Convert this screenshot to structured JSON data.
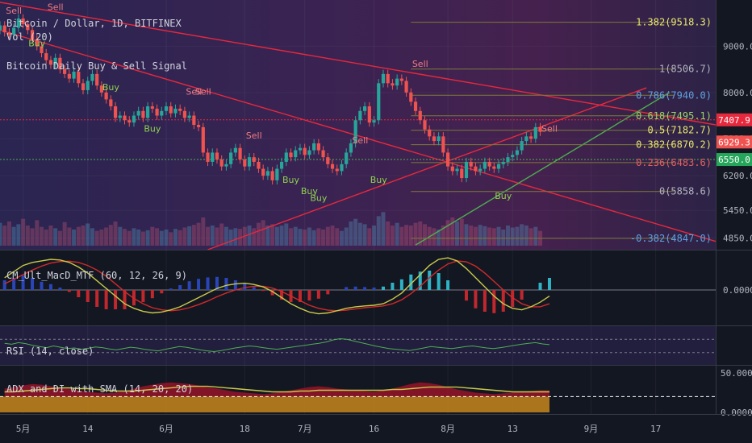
{
  "legend": {
    "symbol": "Bitcoin / Dollar, 1D, BITFINEX",
    "volume": "Vol (20)",
    "indicator": "Bitcoin Daily Buy & Sell Signal",
    "macd": "CM_Ult_MacD_MTF (60, 12, 26, 9)",
    "rsi": "RSI (14, close)",
    "adx": "ADX and DI with SMA (14, 20, 20)"
  },
  "colors": {
    "background": "#131722",
    "up_candle": "#26a69a",
    "down_candle": "#ef5350",
    "trendline": "#e8283c",
    "fib_line": "#7d7a3a",
    "buy_text": "#8fd14f",
    "sell_text": "#f07c82",
    "macd_fast": "#c9c94a",
    "macd_slow": "#d02a2a"
  },
  "chart_data": [
    {
      "type": "candlestick",
      "name": "price",
      "price_axis": {
        "ylim": [
          4600,
          10000
        ],
        "ticks": [
          "9000.0",
          "8000.0",
          "7000.0",
          "6200.0",
          "5450.0",
          "4850.0"
        ],
        "tick_values": [
          9000,
          8000,
          7000,
          6200,
          5450,
          4850
        ]
      },
      "time_axis": {
        "ticks": [
          "5月",
          "14",
          "6月",
          "18",
          "7月",
          "16",
          "8月",
          "13",
          "9月",
          "17"
        ],
        "tick_day": [
          0,
          14,
          31,
          48,
          61,
          76,
          92,
          106,
          123,
          137
        ],
        "day_range": [
          -5,
          150
        ]
      },
      "closes": [
        9450,
        9300,
        9250,
        9400,
        9600,
        9480,
        9350,
        9150,
        9000,
        8850,
        8700,
        8600,
        8750,
        8500,
        8400,
        8300,
        8450,
        8200,
        8050,
        8250,
        8400,
        8150,
        8000,
        7850,
        7700,
        7450,
        7500,
        7400,
        7350,
        7500,
        7600,
        7450,
        7700,
        7650,
        7500,
        7600,
        7700,
        7550,
        7650,
        7600,
        7450,
        7500,
        7300,
        7250,
        6700,
        6500,
        6700,
        6550,
        6400,
        6450,
        6700,
        6800,
        6550,
        6400,
        6600,
        6500,
        6350,
        6200,
        6300,
        6100,
        6350,
        6500,
        6700,
        6600,
        6750,
        6800,
        6650,
        6750,
        6900,
        6750,
        6600,
        6450,
        6350,
        6300,
        6450,
        6700,
        6900,
        7400,
        7600,
        7700,
        7350,
        7400,
        8200,
        8400,
        8200,
        8150,
        8300,
        8250,
        8000,
        7800,
        7600,
        7400,
        7200,
        7050,
        6950,
        7050,
        6700,
        6400,
        6300,
        6350,
        6150,
        6500,
        6400,
        6300,
        6350,
        6500,
        6400,
        6350,
        6450,
        6500,
        6600,
        6650,
        6750,
        6950,
        7050,
        7000,
        7250,
        7150
      ],
      "current_price": {
        "label": "6929.3",
        "value": 6929.3
      },
      "price_tags": [
        {
          "label": "7407.9",
          "value": 7407.9,
          "color": "#e8283c"
        },
        {
          "label": "6929.3",
          "value": 6929.3,
          "color": "#ef5350"
        },
        {
          "label": "6550.0",
          "value": 6550,
          "color": "#26a65b"
        }
      ],
      "hlines": [
        {
          "value": 7407.9,
          "color": "#e8283c"
        },
        {
          "value": 6550,
          "color": "#4caf50"
        }
      ],
      "fib_levels": [
        {
          "label": "1.382(9518.3)",
          "value": 9518.3,
          "color": "#e9e66e"
        },
        {
          "label": "1(8506.7)",
          "value": 8506.7,
          "color": "#b2b5be"
        },
        {
          "label": "0.786(7940.0)",
          "value": 7940,
          "color": "#5ea0e0"
        },
        {
          "label": "0.618(7495.1)",
          "value": 7495.1,
          "color": "#9bd36b"
        },
        {
          "label": "0.5(7182.7)",
          "value": 7182.7,
          "color": "#e9e66e"
        },
        {
          "label": "0.382(6870.2)",
          "value": 6870.2,
          "color": "#e9e66e"
        },
        {
          "label": "0.236(6483.6)",
          "value": 6483.6,
          "color": "#e06060"
        },
        {
          "label": "0(5858.6)",
          "value": 5858.6,
          "color": "#b2b5be"
        },
        {
          "label": "-0.382(4847.0)",
          "value": 4847,
          "color": "#5ea0e0"
        }
      ],
      "signals": [
        {
          "type": "Sell",
          "day": -2,
          "price": 9700
        },
        {
          "type": "Buy",
          "day": 3,
          "price": 9000
        },
        {
          "type": "Sell",
          "day": 7,
          "price": 9780
        },
        {
          "type": "Buy",
          "day": 19,
          "price": 8050
        },
        {
          "type": "Buy",
          "day": 28,
          "price": 7150
        },
        {
          "type": "Sell",
          "day": 37,
          "price": 7950
        },
        {
          "type": "Sell",
          "day": 39,
          "price": 7950
        },
        {
          "type": "Sell",
          "day": 50,
          "price": 7000
        },
        {
          "type": "Buy",
          "day": 58,
          "price": 6050
        },
        {
          "type": "Buy",
          "day": 62,
          "price": 5800
        },
        {
          "type": "Buy",
          "day": 64,
          "price": 5650
        },
        {
          "type": "Sell",
          "day": 73,
          "price": 6900
        },
        {
          "type": "Buy",
          "day": 77,
          "price": 6050
        },
        {
          "type": "Sell",
          "day": 86,
          "price": 8550
        },
        {
          "type": "Buy",
          "day": 104,
          "price": 5700
        },
        {
          "type": "Sell",
          "day": 114,
          "price": 7150
        }
      ]
    },
    {
      "type": "bar",
      "name": "volume",
      "values": [
        34,
        30,
        36,
        28,
        32,
        40,
        30,
        26,
        38,
        28,
        24,
        30,
        26,
        22,
        35,
        27,
        24,
        28,
        30,
        33,
        26,
        22,
        24,
        27,
        31,
        36,
        28,
        25,
        22,
        26,
        24,
        21,
        23,
        28,
        26,
        22,
        24,
        20,
        25,
        23,
        27,
        29,
        31,
        34,
        42,
        28,
        30,
        27,
        33,
        28,
        24,
        26,
        25,
        28,
        30,
        26,
        34,
        38,
        30,
        32,
        28,
        30,
        33,
        26,
        28,
        25,
        24,
        27,
        23,
        26,
        24,
        28,
        30,
        26,
        22,
        27,
        36,
        40,
        34,
        32,
        26,
        30,
        44,
        50,
        36,
        30,
        34,
        28,
        31,
        30,
        34,
        36,
        32,
        28,
        26,
        24,
        30,
        38,
        42,
        36,
        40,
        32,
        30,
        28,
        31,
        29,
        27,
        26,
        28,
        24,
        30,
        27,
        28,
        32,
        30,
        26,
        28,
        22
      ]
    },
    {
      "type": "line",
      "name": "CM_Ult_MacD_MTF",
      "ylabel": "0.0000",
      "fast": [
        0.4,
        0.6,
        0.8,
        0.9,
        0.95,
        1.0,
        0.98,
        0.9,
        0.75,
        0.55,
        0.3,
        0.05,
        -0.2,
        -0.45,
        -0.6,
        -0.7,
        -0.75,
        -0.72,
        -0.65,
        -0.55,
        -0.4,
        -0.25,
        -0.1,
        0.05,
        0.15,
        0.2,
        0.22,
        0.18,
        0.1,
        -0.05,
        -0.25,
        -0.45,
        -0.6,
        -0.72,
        -0.78,
        -0.75,
        -0.68,
        -0.6,
        -0.55,
        -0.52,
        -0.5,
        -0.45,
        -0.3,
        -0.1,
        0.2,
        0.5,
        0.8,
        1.0,
        1.05,
        0.95,
        0.7,
        0.4,
        0.1,
        -0.2,
        -0.45,
        -0.6,
        -0.65,
        -0.55,
        -0.4,
        -0.2
      ],
      "slow": [
        0.2,
        0.35,
        0.5,
        0.65,
        0.78,
        0.88,
        0.93,
        0.94,
        0.9,
        0.8,
        0.65,
        0.45,
        0.2,
        -0.05,
        -0.28,
        -0.45,
        -0.58,
        -0.65,
        -0.68,
        -0.65,
        -0.58,
        -0.48,
        -0.36,
        -0.22,
        -0.1,
        0.0,
        0.08,
        0.12,
        0.12,
        0.06,
        -0.05,
        -0.2,
        -0.35,
        -0.5,
        -0.6,
        -0.66,
        -0.68,
        -0.66,
        -0.62,
        -0.58,
        -0.55,
        -0.52,
        -0.45,
        -0.32,
        -0.12,
        0.12,
        0.4,
        0.65,
        0.85,
        0.95,
        0.92,
        0.78,
        0.55,
        0.28,
        0.0,
        -0.25,
        -0.45,
        -0.55,
        -0.55,
        -0.45
      ]
    },
    {
      "type": "line",
      "name": "RSI",
      "ylim": [
        0,
        100
      ],
      "values": [
        58,
        55,
        60,
        57,
        52,
        48,
        45,
        50,
        46,
        42,
        44,
        40,
        43,
        47,
        45,
        41,
        38,
        42,
        46,
        44,
        40,
        37,
        35,
        40,
        44,
        48,
        46,
        42,
        38,
        35,
        33,
        36,
        40,
        44,
        47,
        50,
        48,
        45,
        42,
        40,
        43,
        46,
        49,
        52,
        55,
        58,
        62,
        68,
        72,
        70,
        65,
        60,
        55,
        50,
        46,
        42,
        40,
        38,
        36,
        40,
        44,
        48,
        46,
        44,
        42,
        45,
        48,
        50,
        47,
        44,
        42,
        45,
        48,
        52,
        55,
        58,
        60,
        56,
        54
      ],
      "bounds": [
        70,
        30
      ]
    },
    {
      "type": "area",
      "name": "ADX and DI with SMA",
      "ylabel": "50.0000",
      "y_ticks": [
        "50.0000",
        "0.0000"
      ],
      "ylim": [
        0,
        55
      ],
      "reference": 20,
      "adx": [
        30,
        32,
        34,
        36,
        35,
        33,
        31,
        30,
        28,
        26,
        25,
        24,
        25,
        27,
        30,
        33,
        35,
        37,
        38,
        37,
        36,
        34,
        32,
        30,
        28,
        26,
        25,
        24,
        23,
        24,
        26,
        28,
        30,
        32,
        33,
        32,
        30,
        29,
        28,
        27,
        26,
        28,
        30,
        33,
        36,
        38,
        37,
        35,
        32,
        29,
        27,
        25,
        24,
        23,
        24,
        25,
        26,
        27,
        28,
        28
      ],
      "sma": [
        26,
        26,
        27,
        28,
        29,
        30,
        31,
        31,
        30,
        30,
        29,
        28,
        27,
        27,
        27,
        28,
        29,
        30,
        31,
        32,
        33,
        33,
        33,
        32,
        31,
        30,
        29,
        28,
        27,
        26,
        26,
        26,
        27,
        27,
        28,
        28,
        28,
        28,
        28,
        28,
        28,
        28,
        29,
        29,
        30,
        31,
        32,
        32,
        32,
        32,
        31,
        30,
        29,
        28,
        27,
        26,
        26,
        26,
        26,
        26
      ]
    }
  ]
}
